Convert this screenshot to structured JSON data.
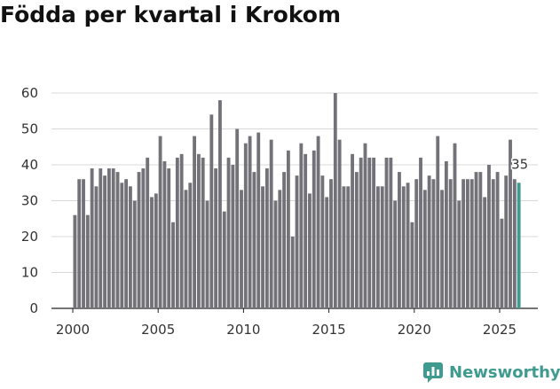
{
  "brand": {
    "name": "Newsworthy",
    "accent": "#3f9a90"
  },
  "chart_data": {
    "type": "bar",
    "title": "Födda per kvartal i Krokom",
    "xlabel": "",
    "ylabel": "",
    "ylim": [
      0,
      60
    ],
    "y_ticks": [
      0,
      10,
      20,
      30,
      40,
      50,
      60
    ],
    "x_ticks": [
      "2000",
      "2005",
      "2010",
      "2015",
      "2020",
      "2025"
    ],
    "x_start_year": 2000,
    "bar_color": "#737278",
    "highlight_color": "#3f9a90",
    "values": [
      26,
      36,
      36,
      26,
      39,
      34,
      39,
      37,
      39,
      39,
      38,
      35,
      36,
      34,
      30,
      38,
      39,
      42,
      31,
      32,
      48,
      41,
      39,
      24,
      42,
      43,
      33,
      35,
      48,
      43,
      42,
      30,
      54,
      39,
      58,
      27,
      42,
      40,
      50,
      33,
      46,
      48,
      38,
      49,
      34,
      39,
      47,
      30,
      33,
      38,
      44,
      20,
      37,
      46,
      43,
      32,
      44,
      48,
      37,
      31,
      36,
      60,
      47,
      34,
      34,
      43,
      38,
      42,
      46,
      42,
      42,
      34,
      34,
      42,
      42,
      30,
      38,
      34,
      35,
      24,
      36,
      42,
      33,
      37,
      36,
      48,
      33,
      41,
      36,
      46,
      30,
      36,
      36,
      36,
      38,
      38,
      31,
      40,
      36,
      38,
      25,
      37,
      47,
      36,
      35
    ],
    "highlight_label": "35"
  }
}
